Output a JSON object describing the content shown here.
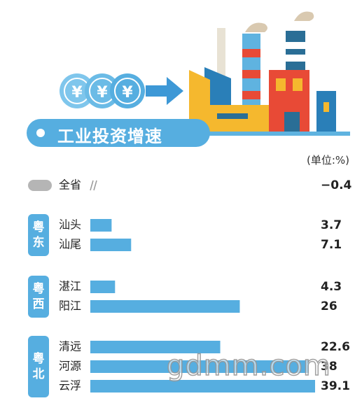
{
  "title": "工业投资增速",
  "unit": "(单位:%)",
  "watermark": "gdmm.com",
  "colors": {
    "bar": "#56aee0",
    "baseline_pill": "#b5b5b5",
    "region_badge": "#56aee0",
    "title_pill": "#56aee0"
  },
  "chart_data": {
    "type": "bar",
    "orientation": "horizontal",
    "unit": "%",
    "groups": [
      {
        "region": "",
        "items": [
          {
            "name": "全省",
            "value": -0.4,
            "label": "−0.4"
          }
        ]
      },
      {
        "region": "粤东",
        "items": [
          {
            "name": "汕头",
            "value": 3.7,
            "label": "3.7"
          },
          {
            "name": "汕尾",
            "value": 7.1,
            "label": "7.1"
          }
        ]
      },
      {
        "region": "粤西",
        "items": [
          {
            "name": "湛江",
            "value": 4.3,
            "label": "4.3"
          },
          {
            "name": "阳江",
            "value": 26,
            "label": "26"
          }
        ]
      },
      {
        "region": "粤北",
        "items": [
          {
            "name": "清远",
            "value": 22.6,
            "label": "22.6"
          },
          {
            "name": "河源",
            "value": 38,
            "label": "38"
          },
          {
            "name": "云浮",
            "value": 39.1,
            "label": "39.1"
          }
        ]
      }
    ]
  }
}
